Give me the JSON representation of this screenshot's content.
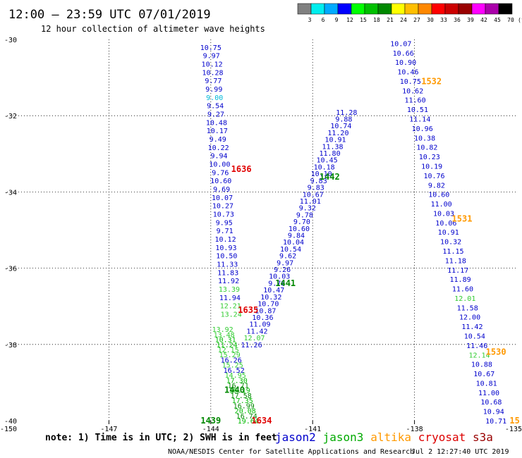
{
  "header": {
    "title": "12:00 – 23:59 UTC 07/01/2019",
    "subtitle": "12 hour collection of altimeter wave heights"
  },
  "colorbar": {
    "labels": [
      "3",
      "6",
      "9",
      "12",
      "15",
      "18",
      "21",
      "24",
      "27",
      "30",
      "33",
      "36",
      "39",
      "42",
      "45",
      "70"
    ],
    "unit": "(ft)",
    "colors": [
      "#808080",
      "#00eeee",
      "#00aaff",
      "#0000ff",
      "#00ff00",
      "#00c000",
      "#008800",
      "#ffff00",
      "#ffbf00",
      "#ff8800",
      "#ff0000",
      "#cc0000",
      "#990000",
      "#ff00ff",
      "#aa00aa",
      "#000000"
    ]
  },
  "chart_data": {
    "type": "scatter",
    "xlim": [
      -150,
      -135
    ],
    "ylim": [
      -40,
      -30
    ],
    "x_ticks": [
      {
        "value": -147,
        "label": "-147"
      },
      {
        "value": -144,
        "label": "-144"
      },
      {
        "value": -141,
        "label": "-141"
      },
      {
        "value": -138,
        "label": "-138"
      }
    ],
    "x_edge_labels": {
      "left": "-150",
      "right": "-135"
    },
    "y_ticks": [
      {
        "value": -30,
        "label": "-30"
      },
      {
        "value": -32,
        "label": "-32"
      },
      {
        "value": -34,
        "label": "-34"
      },
      {
        "value": -36,
        "label": "-36"
      },
      {
        "value": -38,
        "label": "-38"
      },
      {
        "value": -40,
        "label": "-40"
      }
    ],
    "grid": true,
    "tracks": [
      {
        "satellite": "jason2",
        "color": "#0000cc",
        "start": [
          -144.0,
          -30.2
        ],
        "end": [
          -143.4,
          -37.2
        ],
        "values": [
          "10.75",
          "9.97",
          "10.12",
          "10.28",
          "9.77",
          "9.99",
          "9.00",
          "9.54",
          "9.27",
          "10.48",
          "10.17",
          "9.49",
          "10.22",
          "9.94",
          "10.00",
          "9.76",
          "10.60",
          "9.69",
          "10.07",
          "10.27",
          "10.73",
          "9.95",
          "9.71",
          "10.12",
          "10.93",
          "10.50",
          "11.33",
          "11.83",
          "11.92",
          "13.39",
          "11.94",
          "12.21",
          "13.24"
        ]
      },
      {
        "satellite": "jason3",
        "color": "#00bb00",
        "start": [
          -143.65,
          -37.6
        ],
        "end": [
          -142.9,
          -40.0
        ],
        "values": [
          "13.92",
          "13.48",
          "10.31",
          "11.24",
          "12.15",
          "15.29",
          "16.26",
          "15.25",
          "16.52",
          "14.95",
          "17.30",
          "16.71",
          "16.19",
          "17.58",
          "17.35",
          "16.99",
          "20.08",
          "16.74",
          "19.64"
        ]
      },
      {
        "satellite": "jason2",
        "color": "#0000cc",
        "start": [
          -140.0,
          -31.9
        ],
        "end": [
          -142.8,
          -38.0
        ],
        "values": [
          "11.28",
          "9.88",
          "10.74",
          "11.20",
          "10.91",
          "11.38",
          "11.80",
          "10.45",
          "10.18",
          "10.10",
          "9.83",
          "9.83",
          "10.67",
          "11.01",
          "9.32",
          "9.78",
          "9.70",
          "10.60",
          "9.84",
          "10.04",
          "10.54",
          "9.62",
          "9.97",
          "9.26",
          "10.03",
          "9.78",
          "10.47",
          "10.32",
          "10.70",
          "10.87",
          "10.36",
          "11.09",
          "11.42",
          "12.07",
          "11.26"
        ]
      },
      {
        "satellite": "altika",
        "color": "#0000cc",
        "start": [
          -138.4,
          -30.1
        ],
        "end": [
          -135.6,
          -40.0
        ],
        "values": [
          "10.07",
          "10.66",
          "10.90",
          "10.46",
          "10.75",
          "10.62",
          "11.60",
          "10.51",
          "11.14",
          "10.96",
          "10.38",
          "10.82",
          "10.23",
          "10.19",
          "10.76",
          "9.82",
          "10.60",
          "11.00",
          "10.03",
          "10.06",
          "10.91",
          "10.32",
          "11.15",
          "11.18",
          "11.17",
          "11.89",
          "11.60",
          "12.01",
          "11.58",
          "12.00",
          "11.42",
          "10.54",
          "11.46",
          "12.14",
          "10.88",
          "10.67",
          "10.81",
          "11.00",
          "10.68",
          "10.94",
          "10.71"
        ]
      }
    ],
    "highlights": {
      "9.00": "#00b8d8",
      "13.39": "#33cc33",
      "12.21": "#33cc33",
      "13.24": "#33cc33",
      "13.92": "#33cc33",
      "13.48": "#33cc33",
      "12.15": "#33cc33",
      "15.29": "#33cc33",
      "16.26": "#0000cc",
      "15.25": "#33cc33",
      "16.52": "#0000cc",
      "14.95": "#33cc33",
      "16.71": "#008800",
      "17.58": "#008800",
      "16.99": "#008800",
      "16.74": "#008800",
      "12.07": "#33cc33",
      "12.01": "#33cc33",
      "12.14": "#33cc33"
    },
    "time_labels": [
      {
        "text": "1636",
        "x": -143.4,
        "y": -33.4,
        "color": "#e00000"
      },
      {
        "text": "1442",
        "x": -140.8,
        "y": -33.6,
        "color": "#008800"
      },
      {
        "text": "1532",
        "x": -137.8,
        "y": -31.1,
        "color": "#ff9900"
      },
      {
        "text": "1531",
        "x": -136.9,
        "y": -34.7,
        "color": "#ff9900"
      },
      {
        "text": "1441",
        "x": -142.1,
        "y": -36.4,
        "color": "#008800"
      },
      {
        "text": "1635",
        "x": -143.2,
        "y": -37.1,
        "color": "#e00000"
      },
      {
        "text": "1530",
        "x": -135.9,
        "y": -38.2,
        "color": "#ff9900"
      },
      {
        "text": "1440",
        "x": -143.6,
        "y": -39.2,
        "color": "#008800"
      },
      {
        "text": "1439",
        "x": -144.3,
        "y": -40.0,
        "color": "#008800"
      },
      {
        "text": "1634",
        "x": -142.8,
        "y": -40.0,
        "color": "#e00000"
      },
      {
        "text": "15",
        "x": -135.2,
        "y": -40.0,
        "color": "#ff9900"
      }
    ]
  },
  "note": "note: 1) Time is in UTC; 2) SWH is in feet",
  "satellites": [
    {
      "name": "jason2",
      "color": "#0000cc"
    },
    {
      "name": "jason3",
      "color": "#00aa00"
    },
    {
      "name": "altika",
      "color": "#ff9900"
    },
    {
      "name": "cryosat",
      "color": "#dd0000"
    },
    {
      "name": "s3a",
      "color": "#990000"
    }
  ],
  "footer": {
    "left": "NOAA/NESDIS Center for Satellite Applications and Research",
    "right": "Jul  2 12:27:40 UTC 2019"
  }
}
